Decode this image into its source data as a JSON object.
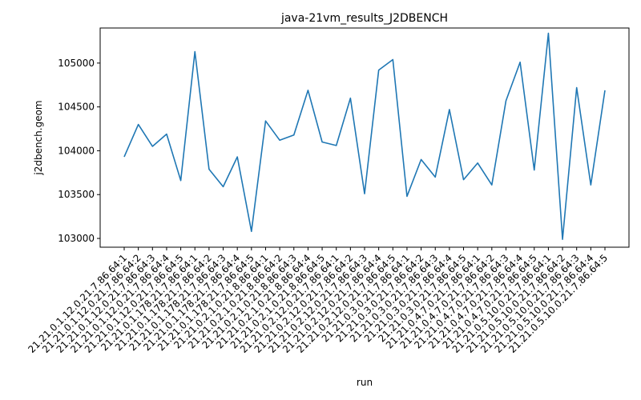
{
  "chart_data": {
    "type": "line",
    "title": "java-21vm_results_J2DBENCH",
    "xlabel": "run",
    "ylabel": "j2dbench.geom",
    "ylim": [
      102900,
      105400
    ],
    "yticks": [
      103000,
      103500,
      104000,
      104500,
      105000
    ],
    "grid": false,
    "series_color": "#1f77b4",
    "categories": [
      "21.21.0.1.12.0.21.7.86.64:1",
      "21.21.0.1.12.0.21.7.86.64:2",
      "21.21.0.1.12.0.21.7.86.64:3",
      "21.21.0.1.12.0.21.7.86.64:4",
      "21.21.0.1.12.0.21.7.86.64:5",
      "21.21.0.1.178.21.7.86.64:1",
      "21.21.0.1.178.21.7.86.64:2",
      "21.21.0.1.178.21.7.86.64:3",
      "21.21.0.1.178.21.7.86.64:4",
      "21.21.0.1.178.21.7.86.64:5",
      "21.21.0.2.1.0.21.8.86.64:1",
      "21.21.0.2.1.0.21.8.86.64:2",
      "21.21.0.2.1.0.21.8.86.64:3",
      "21.21.0.2.1.0.21.8.86.64:4",
      "21.21.0.2.1.0.21.8.86.64:5",
      "21.21.0.2.12.0.21.7.86.64:1",
      "21.21.0.2.12.0.21.7.86.64:2",
      "21.21.0.2.12.0.21.7.86.64:3",
      "21.21.0.2.12.0.21.7.86.64:4",
      "21.21.0.2.12.0.21.7.86.64:5",
      "21.21.0.3.0.21.7.86.64:1",
      "21.21.0.3.0.21.7.86.64:2",
      "21.21.0.3.0.21.7.86.64:3",
      "21.21.0.3.0.21.7.86.64:4",
      "21.21.0.3.0.21.7.86.64:5",
      "21.21.0.4.7.0.21.7.86.64:1",
      "21.21.0.4.7.0.21.7.86.64:2",
      "21.21.0.4.7.0.21.7.86.64:3",
      "21.21.0.4.7.0.21.7.86.64:4",
      "21.21.0.4.7.0.21.7.86.64:5",
      "21.21.0.5.10.0.21.7.86.64:1",
      "21.21.0.5.10.0.21.7.86.64:2",
      "21.21.0.5.10.0.21.7.86.64:3",
      "21.21.0.5.10.0.21.7.86.64:4",
      "21.21.0.5.10.0.21.7.86.64:5"
    ],
    "series": [
      {
        "values": [
          103930,
          104300,
          104050,
          104190,
          103660,
          105130,
          103790,
          103590,
          103930,
          103080,
          104340,
          104120,
          104180,
          104690,
          104100,
          104060,
          104600,
          103510,
          104920,
          105040,
          103480,
          103900,
          103700,
          104470,
          103670,
          103860,
          103610,
          104570,
          105010,
          103780,
          105340,
          102990,
          104720,
          103610,
          104690
        ]
      }
    ]
  }
}
